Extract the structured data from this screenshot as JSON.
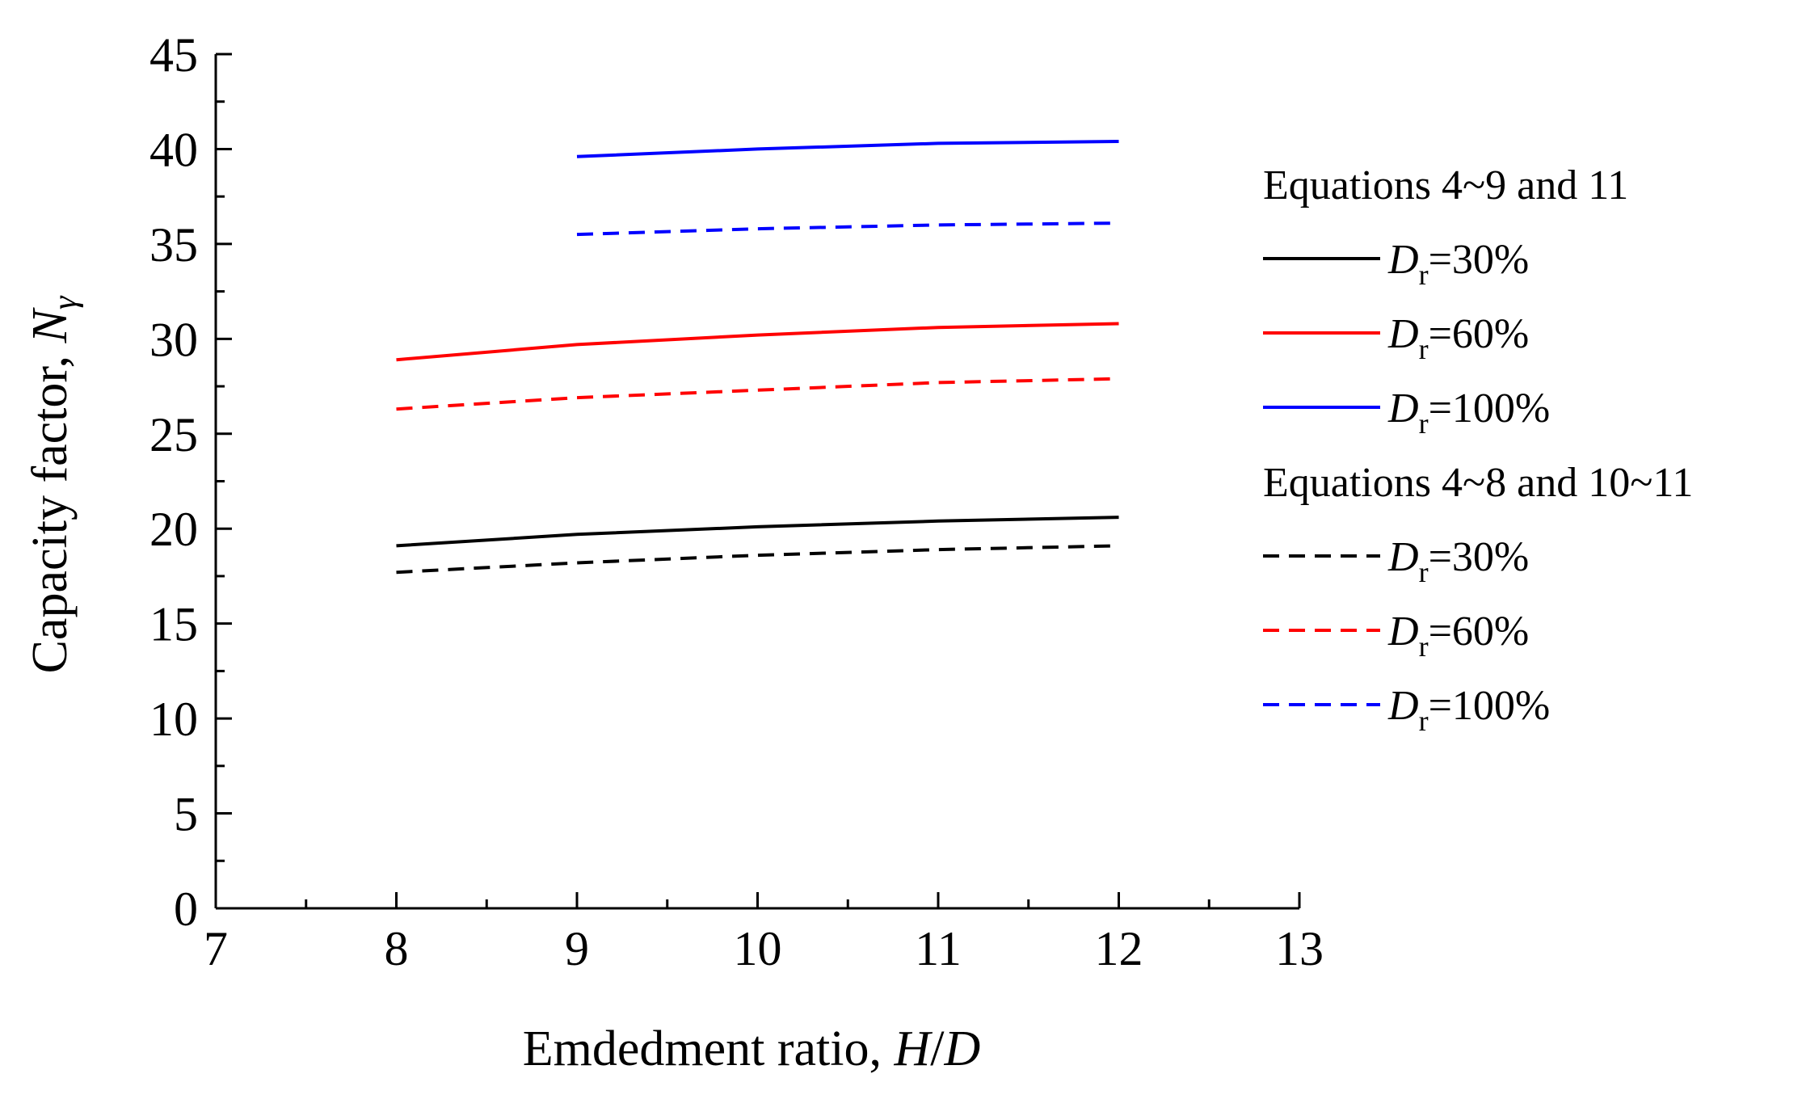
{
  "chart_data": {
    "type": "line",
    "title": "",
    "xlabel": {
      "prefix": "Emdedment ratio, ",
      "italic": "H",
      "sep": "/",
      "italic2": "D"
    },
    "ylabel": {
      "prefix": "Capacity factor, ",
      "italic": "N",
      "sub": "γ"
    },
    "xlim": [
      7,
      13
    ],
    "ylim": [
      0,
      45
    ],
    "x_ticks": [
      7,
      8,
      9,
      10,
      11,
      12,
      13
    ],
    "y_ticks": [
      0,
      5,
      10,
      15,
      20,
      25,
      30,
      35,
      40,
      45
    ],
    "grid": false,
    "legend_position": "right",
    "legend_groups": [
      {
        "header": "Equations 4~9 and 11",
        "style": "solid"
      },
      {
        "header": "Equations 4~8 and 10~11",
        "style": "dashed"
      }
    ],
    "series": [
      {
        "group": 0,
        "name": "D",
        "sub": "r",
        "suffix": "=30%",
        "color": "#000000",
        "style": "solid",
        "x": [
          8,
          9,
          10,
          11,
          12
        ],
        "values": [
          19.1,
          19.7,
          20.1,
          20.4,
          20.6
        ]
      },
      {
        "group": 0,
        "name": "D",
        "sub": "r",
        "suffix": "=60%",
        "color": "#ff0000",
        "style": "solid",
        "x": [
          8,
          9,
          10,
          11,
          12
        ],
        "values": [
          28.9,
          29.7,
          30.2,
          30.6,
          30.8
        ]
      },
      {
        "group": 0,
        "name": "D",
        "sub": "r",
        "suffix": "=100%",
        "color": "#0000ff",
        "style": "solid",
        "x": [
          9,
          10,
          11,
          12
        ],
        "values": [
          39.6,
          40.0,
          40.3,
          40.4
        ]
      },
      {
        "group": 1,
        "name": "D",
        "sub": "r",
        "suffix": "=30%",
        "color": "#000000",
        "style": "dashed",
        "x": [
          8,
          9,
          10,
          11,
          12
        ],
        "values": [
          17.7,
          18.2,
          18.6,
          18.9,
          19.1
        ]
      },
      {
        "group": 1,
        "name": "D",
        "sub": "r",
        "suffix": "=60%",
        "color": "#ff0000",
        "style": "dashed",
        "x": [
          8,
          9,
          10,
          11,
          12
        ],
        "values": [
          26.3,
          26.9,
          27.3,
          27.7,
          27.9
        ]
      },
      {
        "group": 1,
        "name": "D",
        "sub": "r",
        "suffix": "=100%",
        "color": "#0000ff",
        "style": "dashed",
        "x": [
          9,
          10,
          11,
          12
        ],
        "values": [
          35.5,
          35.8,
          36.0,
          36.1
        ]
      }
    ]
  }
}
